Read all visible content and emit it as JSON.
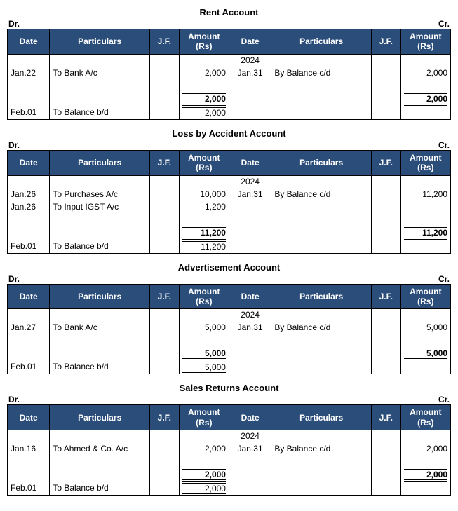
{
  "labels": {
    "dr": "Dr.",
    "cr": "Cr.",
    "date": "Date",
    "particulars": "Particulars",
    "jf": "J.F.",
    "amountRs": "Amount (Rs)"
  },
  "accounts": [
    {
      "title": "Rent Account",
      "dr": {
        "rows": [
          {
            "date": "Jan.22",
            "part": "To Bank A/c",
            "jf": "",
            "amt": "2,000"
          }
        ],
        "total": "2,000",
        "bd": {
          "date": "Feb.01",
          "part": "To Balance b/d",
          "jf": "",
          "amt": "2,000"
        }
      },
      "cr": {
        "year": "2024",
        "rows": [
          {
            "date": "Jan.31",
            "part": "By Balance c/d",
            "jf": "",
            "amt": "2,000"
          }
        ],
        "total": "2,000"
      }
    },
    {
      "title": "Loss by Accident Account",
      "dr": {
        "rows": [
          {
            "date": "Jan.26",
            "part": "To Purchases  A/c",
            "jf": "",
            "amt": "10,000"
          },
          {
            "date": "Jan.26",
            "part": "To Input IGST A/c",
            "jf": "",
            "amt": "1,200"
          }
        ],
        "total": "11,200",
        "bd": {
          "date": "Feb.01",
          "part": "To Balance b/d",
          "jf": "",
          "amt": "11,200"
        }
      },
      "cr": {
        "year": "2024",
        "rows": [
          {
            "date": "Jan.31",
            "part": "By Balance c/d",
            "jf": "",
            "amt": "11,200"
          }
        ],
        "total": "11,200"
      }
    },
    {
      "title": "Advertisement Account",
      "dr": {
        "rows": [
          {
            "date": "Jan.27",
            "part": "To Bank A/c",
            "jf": "",
            "amt": "5,000"
          }
        ],
        "total": "5,000",
        "bd": {
          "date": "Feb.01",
          "part": "To Balance b/d",
          "jf": "",
          "amt": "5,000"
        }
      },
      "cr": {
        "year": "2024",
        "rows": [
          {
            "date": "Jan.31",
            "part": "By Balance c/d",
            "jf": "",
            "amt": "5,000"
          }
        ],
        "total": "5,000"
      }
    },
    {
      "title": "Sales Returns Account",
      "dr": {
        "rows": [
          {
            "date": "Jan.16",
            "part": "To Ahmed & Co. A/c",
            "jf": "",
            "amt": "2,000"
          }
        ],
        "total": "2,000",
        "bd": {
          "date": "Feb.01",
          "part": "To Balance b/d",
          "jf": "",
          "amt": "2,000"
        }
      },
      "cr": {
        "year": "2024",
        "rows": [
          {
            "date": "Jan.31",
            "part": "By Balance c/d",
            "jf": "",
            "amt": "2,000"
          }
        ],
        "total": "2,000"
      }
    }
  ]
}
